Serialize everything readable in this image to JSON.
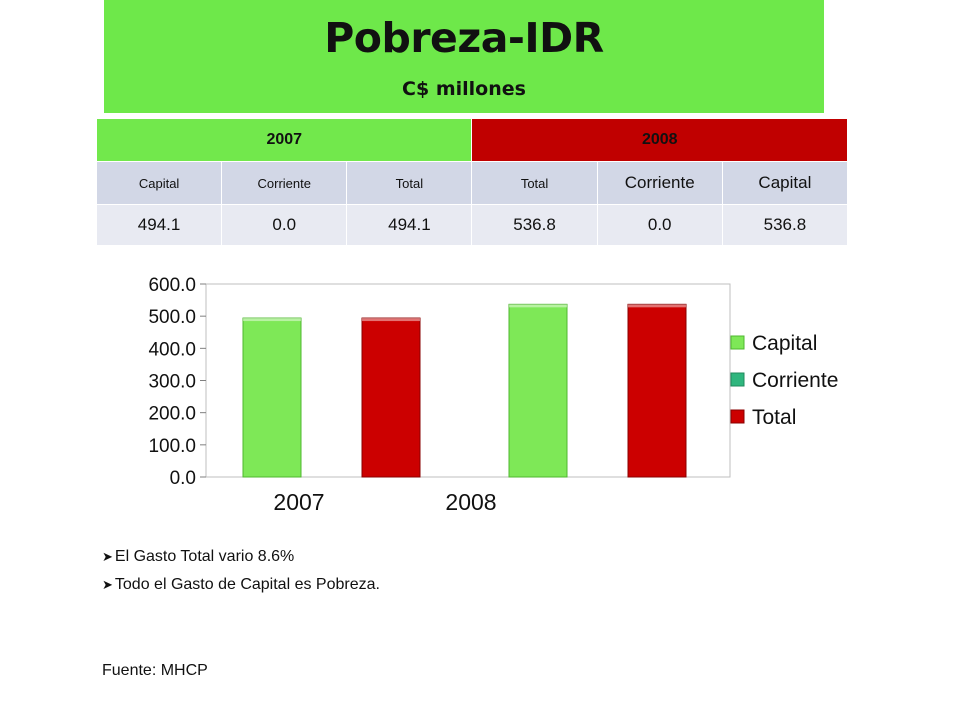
{
  "title": "Pobreza-IDR",
  "subtitle": "C$ millones",
  "table": {
    "years": [
      "2007",
      "2008"
    ],
    "headers": [
      "Capital",
      "Corriente",
      "Total",
      "Total",
      "Corriente",
      "Capital"
    ],
    "values": [
      "494.1",
      "0.0",
      "494.1",
      "536.8",
      "0.0",
      "536.8"
    ]
  },
  "colors": {
    "capital": "#7ee857",
    "corriente": "#2fb67e",
    "total": "#cc0000",
    "banner": "#6ee84a",
    "year2008": "#c00000"
  },
  "chart_data": {
    "type": "bar",
    "categories": [
      "2007",
      "2008"
    ],
    "bars": [
      {
        "series": "Capital",
        "value": 494.1
      },
      {
        "series": "Total",
        "value": 494.1
      },
      {
        "series": "Capital",
        "value": 536.8
      },
      {
        "series": "Total",
        "value": 536.8
      }
    ],
    "series": [
      {
        "name": "Capital",
        "values": [
          494.1,
          536.8
        ]
      },
      {
        "name": "Corriente",
        "values": [
          0.0,
          0.0
        ]
      },
      {
        "name": "Total",
        "values": [
          494.1,
          536.8
        ]
      }
    ],
    "yticks": [
      "0.0",
      "100.0",
      "200.0",
      "300.0",
      "400.0",
      "500.0",
      "600.0"
    ],
    "ylim": [
      0,
      600
    ],
    "grid": false,
    "legend": "right"
  },
  "notes": [
    "El Gasto Total vario 8.6%",
    "Todo el Gasto de Capital es Pobreza."
  ],
  "source": "Fuente: MHCP"
}
